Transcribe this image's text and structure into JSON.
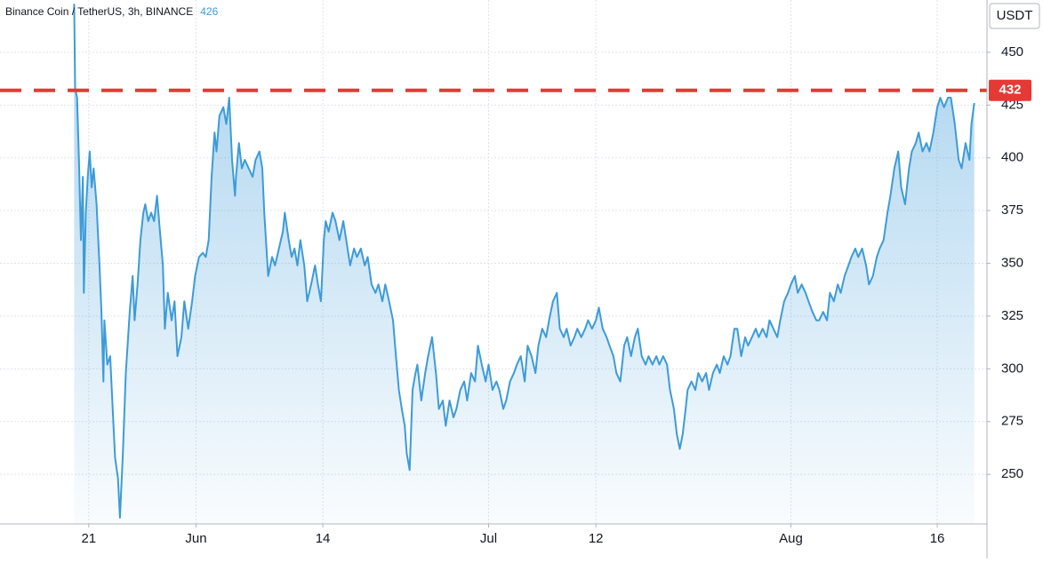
{
  "chart_data": {
    "type": "area",
    "title": "Binance Coin / TetherUS, 3h, BINANCE",
    "last_price": 426,
    "unit": "USDT",
    "color": "#3d9bd9",
    "grid": true,
    "xlim": [
      -9.1,
      92.1
    ],
    "ylim": [
      226.5,
      474.8
    ],
    "xticks": [
      {
        "value": 0,
        "label": "21"
      },
      {
        "value": 11,
        "label": "Jun"
      },
      {
        "value": 24,
        "label": "14"
      },
      {
        "value": 41,
        "label": "Jul"
      },
      {
        "value": 52,
        "label": "12"
      },
      {
        "value": 72,
        "label": "Aug"
      },
      {
        "value": 87,
        "label": "16"
      }
    ],
    "yticks": [
      250,
      275,
      300,
      325,
      350,
      375,
      400,
      425,
      450
    ],
    "reference_line": {
      "value": 432,
      "color": "#e53935"
    },
    "x": [
      -1.5,
      -1.4,
      -1.2,
      -1.0,
      -0.8,
      -0.6,
      -0.5,
      -0.3,
      -0.1,
      0.1,
      0.3,
      0.5,
      0.8,
      1.1,
      1.3,
      1.5,
      1.6,
      1.9,
      2.2,
      2.5,
      2.7,
      3.0,
      3.2,
      3.5,
      3.8,
      4.2,
      4.5,
      4.7,
      5.0,
      5.3,
      5.6,
      5.8,
      6.1,
      6.4,
      6.7,
      7.0,
      7.3,
      7.6,
      7.8,
      8.1,
      8.5,
      8.8,
      9.1,
      9.5,
      9.8,
      10.2,
      10.6,
      10.9,
      11.3,
      11.7,
      12.0,
      12.3,
      12.6,
      12.9,
      13.1,
      13.4,
      13.8,
      14.1,
      14.4,
      14.7,
      15.0,
      15.1,
      15.4,
      15.7,
      16.0,
      16.4,
      16.8,
      17.1,
      17.5,
      17.8,
      18.0,
      18.4,
      18.8,
      19.1,
      19.5,
      19.9,
      20.1,
      20.5,
      20.8,
      21.1,
      21.4,
      21.7,
      22.1,
      22.4,
      22.8,
      23.2,
      23.5,
      23.8,
      24.1,
      24.3,
      24.6,
      25.0,
      25.3,
      25.7,
      26.1,
      26.4,
      26.8,
      27.2,
      27.5,
      27.9,
      28.3,
      28.6,
      29.0,
      29.4,
      29.7,
      30.1,
      30.4,
      30.8,
      31.2,
      31.5,
      31.8,
      32.1,
      32.4,
      32.6,
      32.9,
      33.2,
      33.5,
      33.7,
      34.1,
      34.5,
      34.8,
      35.2,
      35.6,
      35.9,
      36.3,
      36.6,
      37.0,
      37.4,
      37.7,
      38.1,
      38.5,
      38.8,
      39.2,
      39.6,
      39.9,
      40.3,
      40.7,
      41.0,
      41.4,
      41.8,
      42.1,
      42.5,
      42.8,
      43.2,
      43.6,
      43.9,
      44.3,
      44.7,
      45.0,
      45.4,
      45.8,
      46.1,
      46.5,
      46.9,
      47.2,
      47.6,
      48.0,
      48.3,
      48.7,
      49.0,
      49.4,
      49.8,
      50.1,
      50.5,
      50.9,
      51.2,
      51.6,
      52.0,
      52.3,
      52.7,
      53.1,
      53.4,
      53.8,
      54.1,
      54.5,
      54.9,
      55.2,
      55.6,
      56.0,
      56.3,
      56.7,
      57.1,
      57.4,
      57.8,
      58.2,
      58.5,
      58.9,
      59.3,
      59.6,
      60.0,
      60.3,
      60.6,
      60.9,
      61.2,
      61.4,
      61.8,
      62.2,
      62.5,
      62.9,
      63.3,
      63.6,
      64.0,
      64.4,
      64.7,
      65.1,
      65.5,
      65.8,
      66.2,
      66.5,
      66.9,
      67.3,
      67.6,
      68.0,
      68.4,
      68.7,
      69.1,
      69.5,
      69.8,
      70.2,
      70.6,
      70.9,
      71.3,
      71.7,
      72.0,
      72.4,
      72.7,
      73.1,
      73.5,
      73.8,
      74.2,
      74.6,
      74.9,
      75.3,
      75.7,
      76.0,
      76.4,
      76.8,
      77.1,
      77.5,
      77.9,
      78.2,
      78.6,
      78.9,
      79.3,
      79.7,
      80.0,
      80.4,
      80.8,
      81.1,
      81.5,
      81.9,
      82.2,
      82.6,
      83.0,
      83.3,
      83.7,
      84.1,
      84.4,
      84.8,
      85.1,
      85.5,
      85.9,
      86.2,
      86.6,
      87.0,
      87.3,
      87.7,
      88.1,
      88.4,
      88.8,
      89.2,
      89.5,
      89.9,
      90.3,
      90.5,
      90.8
    ],
    "values": [
      473,
      432.7,
      428.5,
      399,
      361,
      391,
      336,
      374,
      391,
      403,
      386,
      395,
      378,
      349,
      327,
      294,
      323,
      302,
      306,
      277,
      258,
      248,
      229.5,
      260,
      298,
      327,
      344,
      323,
      340,
      361,
      374,
      378,
      370,
      374,
      370,
      382,
      365,
      349,
      319,
      336,
      323,
      332,
      306,
      315,
      332,
      319,
      332,
      344,
      353,
      355,
      353,
      361,
      391,
      412,
      403,
      420,
      424,
      416,
      428.5,
      399,
      382,
      391,
      407,
      395,
      399,
      395,
      391,
      399,
      403,
      395,
      374,
      344,
      353,
      349,
      357,
      365,
      374,
      361,
      353,
      357,
      349,
      361,
      349,
      332,
      340,
      349,
      340,
      332,
      361,
      370,
      365,
      374,
      370,
      361,
      370,
      361,
      349,
      357,
      353,
      357,
      349,
      353,
      340,
      336,
      340,
      332,
      340,
      332,
      323,
      306,
      290,
      281,
      273,
      260,
      252,
      290,
      298,
      302,
      285,
      298,
      306,
      315,
      298,
      281,
      285,
      273,
      285,
      277,
      281,
      290,
      294,
      285,
      298,
      294,
      311,
      302,
      294,
      302,
      290,
      294,
      290,
      281,
      285,
      294,
      298,
      302,
      306,
      294,
      311,
      306,
      298,
      311,
      319,
      315,
      323,
      332,
      336,
      319,
      315,
      319,
      311,
      315,
      319,
      315,
      319,
      323,
      319,
      323,
      329,
      319,
      315,
      311,
      306,
      298,
      294,
      311,
      315,
      306,
      315,
      319,
      306,
      302,
      306,
      302,
      306,
      302,
      306,
      302,
      290,
      281,
      269,
      262,
      269,
      281,
      290,
      294,
      290,
      298,
      294,
      298,
      290,
      298,
      302,
      298,
      306,
      302,
      306,
      319,
      319,
      306,
      315,
      311,
      315,
      319,
      315,
      319,
      315,
      323,
      319,
      315,
      323,
      332,
      336,
      340,
      344,
      336,
      340,
      336,
      332,
      327,
      323,
      323,
      327,
      323,
      336,
      332,
      340,
      336,
      344,
      349,
      353,
      357,
      353,
      357,
      349,
      340,
      344,
      353,
      357,
      361,
      374,
      382,
      395,
      403,
      386,
      378,
      395,
      403,
      407,
      412,
      403,
      407,
      403,
      412,
      424,
      428.5,
      424,
      428.5,
      428.5,
      416,
      399,
      395,
      407,
      399,
      416,
      426
    ]
  }
}
